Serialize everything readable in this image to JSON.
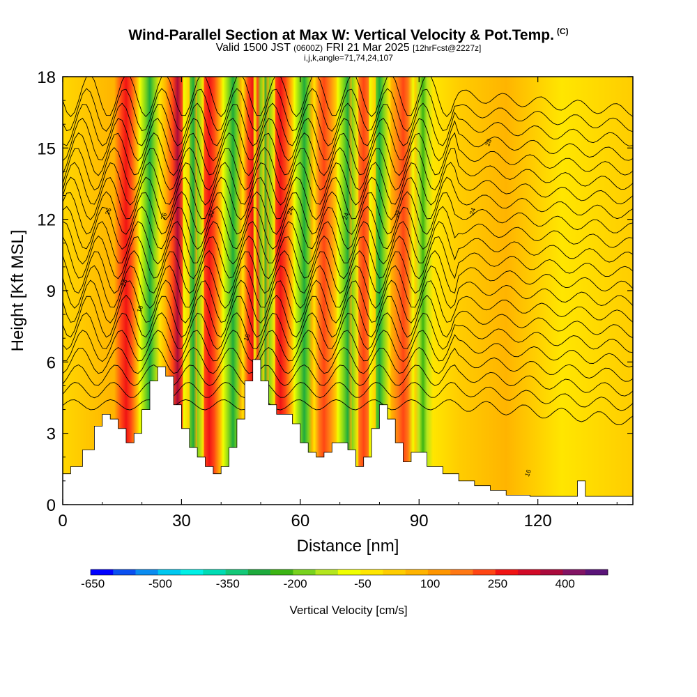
{
  "header": {
    "title_main": "Wind-Parallel Section at Max W: Vertical Velocity & Pot.Temp.",
    "title_mark": "(C)",
    "valid_a": "Valid 1500 JST",
    "valid_utc": "(0600Z)",
    "valid_b": "FRI 21 Mar 2025",
    "fcst": "[12hrFcst@2227z]",
    "ijk": "i,j,k,angle=71,74,24,107"
  },
  "chart_data": {
    "type": "heatmap",
    "xlabel": "Distance [nm]",
    "ylabel": "Height [Kft MSL]",
    "xlim": [
      0,
      144
    ],
    "ylim": [
      0,
      18
    ],
    "x_ticks": [
      0,
      30,
      60,
      90,
      120
    ],
    "y_ticks": [
      0,
      3,
      6,
      9,
      12,
      15,
      18
    ],
    "colorbar": {
      "title": "Vertical Velocity [cm/s]",
      "tick_labels": [
        "-650",
        "-500",
        "-350",
        "-200",
        "-50",
        "100",
        "250",
        "400"
      ],
      "colors": [
        "#0000ff",
        "#0a50f0",
        "#0a8cf0",
        "#00c8f0",
        "#00f0e6",
        "#00dcb4",
        "#14c878",
        "#1eaa3c",
        "#3cb414",
        "#78d21e",
        "#b4e61e",
        "#f0ff00",
        "#ffe600",
        "#ffcd00",
        "#ffb400",
        "#ff9600",
        "#ff7814",
        "#ff4614",
        "#f01414",
        "#d20a28",
        "#aa0a3c",
        "#821464",
        "#5a1478"
      ]
    },
    "updraft_bands_nm": [
      16,
      29,
      37,
      48,
      55,
      66,
      76,
      86
    ],
    "downdraft_bands_nm": [
      22,
      33,
      43,
      51,
      61,
      72,
      80,
      91
    ],
    "terrain": {
      "x_nm": [
        0,
        2,
        5,
        8,
        10,
        12,
        14,
        16,
        18,
        20,
        22,
        24,
        26,
        28,
        30,
        32,
        34,
        36,
        38,
        40,
        42,
        44,
        46,
        48,
        50,
        52,
        54,
        56,
        58,
        60,
        62,
        64,
        66,
        68,
        70,
        72,
        74,
        76,
        78,
        80,
        82,
        84,
        86,
        88,
        90,
        92,
        96,
        100,
        104,
        108,
        112,
        118,
        124,
        128,
        130,
        132,
        136,
        144
      ],
      "height_kft": [
        1.3,
        1.6,
        2.3,
        3.3,
        3.8,
        3.6,
        3.2,
        2.6,
        3.0,
        4.0,
        5.2,
        5.8,
        5.4,
        4.2,
        3.2,
        2.4,
        2.0,
        1.6,
        1.3,
        1.6,
        2.4,
        3.6,
        5.2,
        6.1,
        5.2,
        4.2,
        3.8,
        3.8,
        3.4,
        2.6,
        2.2,
        2.0,
        2.2,
        2.6,
        2.6,
        2.3,
        1.6,
        2.0,
        3.2,
        4.2,
        3.6,
        2.6,
        1.8,
        2.2,
        2.2,
        1.6,
        1.3,
        1.0,
        0.8,
        0.6,
        0.4,
        0.35,
        0.35,
        0.35,
        1.0,
        0.35,
        0.35,
        0.35
      ]
    },
    "theta_contour_labels": [
      "16",
      "18",
      "20",
      "22",
      "24",
      "26",
      "28"
    ]
  }
}
